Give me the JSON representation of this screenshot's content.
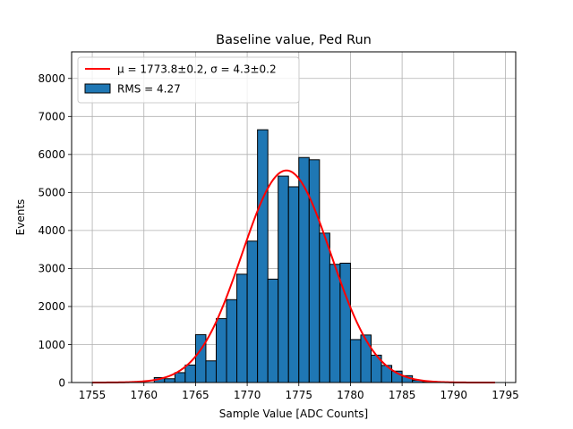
{
  "chart_data": {
    "type": "bar",
    "title": "Baseline value, Ped Run",
    "xlabel": "Sample Value [ADC Counts]",
    "ylabel": "Events",
    "xlim": [
      1753,
      1796
    ],
    "ylim": [
      0,
      8700
    ],
    "xticks": [
      1755,
      1760,
      1765,
      1770,
      1775,
      1780,
      1785,
      1790,
      1795
    ],
    "yticks": [
      0,
      1000,
      2000,
      3000,
      4000,
      5000,
      6000,
      7000,
      8000
    ],
    "grid": true,
    "legend_position": "top-left",
    "bar_color": "#1f77b4",
    "fit_color": "#ff0000",
    "histogram": {
      "name": "RMS = 4.27",
      "bin_width": 1,
      "bins": [
        {
          "x": 1761,
          "count": 130
        },
        {
          "x": 1762,
          "count": 100
        },
        {
          "x": 1763,
          "count": 260
        },
        {
          "x": 1764,
          "count": 460
        },
        {
          "x": 1765,
          "count": 1260
        },
        {
          "x": 1766,
          "count": 570
        },
        {
          "x": 1767,
          "count": 1680
        },
        {
          "x": 1768,
          "count": 2180
        },
        {
          "x": 1769,
          "count": 2850
        },
        {
          "x": 1770,
          "count": 3720
        },
        {
          "x": 1771,
          "count": 6650
        },
        {
          "x": 1772,
          "count": 2720
        },
        {
          "x": 1773,
          "count": 5430
        },
        {
          "x": 1774,
          "count": 5150
        },
        {
          "x": 1775,
          "count": 5920
        },
        {
          "x": 1776,
          "count": 5860
        },
        {
          "x": 1777,
          "count": 3930
        },
        {
          "x": 1778,
          "count": 3110
        },
        {
          "x": 1779,
          "count": 3140
        },
        {
          "x": 1780,
          "count": 1130
        },
        {
          "x": 1781,
          "count": 1250
        },
        {
          "x": 1782,
          "count": 720
        },
        {
          "x": 1783,
          "count": 450
        },
        {
          "x": 1784,
          "count": 300
        },
        {
          "x": 1785,
          "count": 180
        },
        {
          "x": 1786,
          "count": 60
        },
        {
          "x": 1787,
          "count": 25
        },
        {
          "x": 1788,
          "count": 10
        }
      ]
    },
    "fit": {
      "name": "μ = 1773.8±0.2, σ = 4.3±0.2",
      "mu": 1773.8,
      "sigma": 4.3,
      "amplitude": 5580,
      "x_range": [
        1755,
        1794
      ]
    }
  }
}
